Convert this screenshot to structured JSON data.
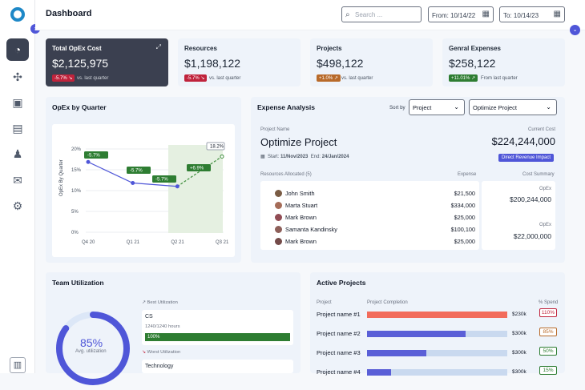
{
  "app": {
    "title": "Dashboard"
  },
  "search": {
    "placeholder": "Search ..."
  },
  "dates": {
    "from": "From: 10/14/22",
    "to": "To: 10/14/23"
  },
  "kpis": [
    {
      "title": "Total OpEx Cost",
      "value": "$2,125,975",
      "delta": "-5.7%",
      "delta_icon": "trend-down-icon",
      "subtitle": "vs. last quarter"
    },
    {
      "title": "Resources",
      "value": "$1,198,122",
      "delta": "-5.7%",
      "delta_icon": "trend-down-icon",
      "subtitle": "vs. last quarter"
    },
    {
      "title": "Projects",
      "value": "$498,122",
      "delta": "+1.0%",
      "delta_icon": "trend-up-icon",
      "subtitle": "vs. last quarter"
    },
    {
      "title": "Genral Expenses",
      "value": "$258,122",
      "delta": "+11.01%",
      "delta_icon": "trend-up-icon",
      "subtitle": "From last quarter"
    }
  ],
  "opex_chart": {
    "title": "OpEx by Quarter",
    "ylabel": "OpEx By Quarter",
    "yticks": [
      "20%",
      "15%",
      "10%",
      "5%",
      "0%"
    ],
    "labels": [
      "-5.7%",
      "-5.7%",
      "-5.7%",
      "+6.9%",
      "18.2%"
    ]
  },
  "chart_data": {
    "type": "line",
    "categories": [
      "Q4 20",
      "Q1 21",
      "Q2 21",
      "Q3 21"
    ],
    "series": [
      {
        "values": [
          16.9,
          11.9,
          11.1,
          18.2
        ]
      }
    ],
    "ylim": [
      0,
      20
    ],
    "grid": true
  },
  "expense": {
    "title": "Expense Analysis",
    "sort_label": "Sort by",
    "sort_value": "Project",
    "project_select": "Optimize Project",
    "project_name_label": "Project Name",
    "project_name": "Optimize Project",
    "current_cost_label": "Current Cost",
    "current_cost": "$224,244,000",
    "start": "Start:",
    "start_date": "11/Nov/2023",
    "end": "End:",
    "end_date": "24/Jan/2024",
    "impact": "Direct Revenue Impact",
    "resources_label": "Resources Allocated (5)",
    "expense_label": "Expense",
    "cost_summary_label": "Cost Summary",
    "resources": [
      {
        "name": "John Smith",
        "value": "$21,500",
        "color": "#7a5c44"
      },
      {
        "name": "Marta Stuart",
        "value": "$334,000",
        "color": "#a56c58"
      },
      {
        "name": "Mark Brown",
        "value": "$25,000",
        "color": "#914c54"
      },
      {
        "name": "Samanta Kandinsky",
        "value": "$100,100",
        "color": "#8d5f59"
      },
      {
        "name": "Mark Brown",
        "value": "$25,000",
        "color": "#744b49"
      }
    ],
    "summary": [
      {
        "label": "OpEx",
        "value": "$200,244,000"
      },
      {
        "label": "OpEx",
        "value": "$22,000,000"
      }
    ]
  },
  "team": {
    "title": "Team Utilization",
    "percent": "85%",
    "percent_label": "Avg. utilization",
    "progress": 0.85,
    "best_label": "Best Utilization",
    "best_name": "CS",
    "best_hours": "1240/1240 hours",
    "best_pct": "100%",
    "worst_label": "Worst Utilization",
    "worst_name": "Technology"
  },
  "active": {
    "title": "Active Projects",
    "col_project": "Project",
    "col_completion": "Project Completion",
    "col_spend": "% Spend",
    "rows": [
      {
        "name": "Project name #1",
        "completion": 1.0,
        "money": "$230k",
        "spend": "110%",
        "tone": "red",
        "color": "#f26b5b"
      },
      {
        "name": "Project name #2",
        "completion": 0.7,
        "money": "$300k",
        "spend": "85%",
        "tone": "orange",
        "color": "#5a5fd7"
      },
      {
        "name": "Project name #3",
        "completion": 0.42,
        "money": "$300k",
        "spend": "50%",
        "tone": "green",
        "color": "#5a5fd7"
      },
      {
        "name": "Project name #4",
        "completion": 0.17,
        "money": "$300k",
        "spend": "15%",
        "tone": "green",
        "color": "#5a5fd7"
      }
    ]
  }
}
